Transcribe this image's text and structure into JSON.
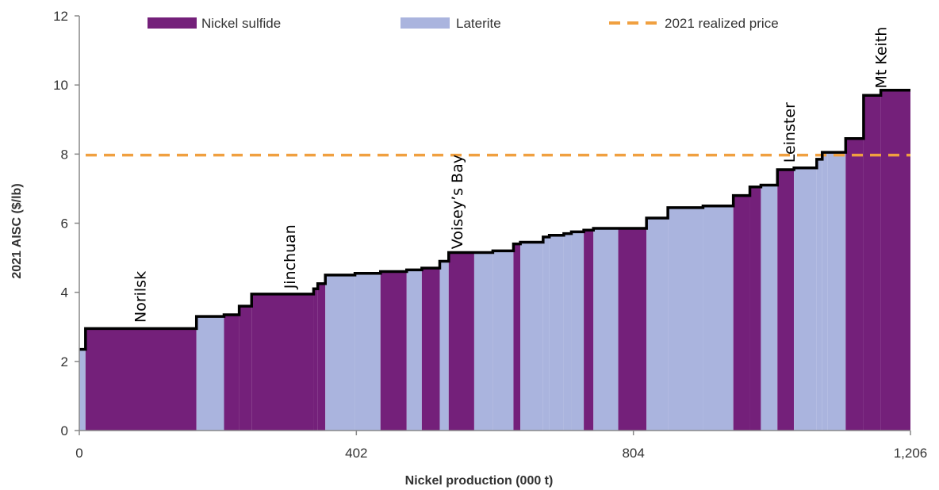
{
  "chart_data": {
    "type": "area",
    "xlabel": "Nickel production (000 t)",
    "ylabel": "2021 AISC ($/lb)",
    "xlim": [
      0,
      1206
    ],
    "ylim": [
      0,
      12
    ],
    "x_ticks": [
      {
        "value": 0,
        "label": "0"
      },
      {
        "value": 402,
        "label": "402"
      },
      {
        "value": 804,
        "label": "804"
      },
      {
        "value": 1206,
        "label": "1,206"
      }
    ],
    "y_ticks": [
      {
        "value": 0,
        "label": "0"
      },
      {
        "value": 2,
        "label": "2"
      },
      {
        "value": 4,
        "label": "4"
      },
      {
        "value": 6,
        "label": "6"
      },
      {
        "value": 8,
        "label": "8"
      },
      {
        "value": 10,
        "label": "10"
      },
      {
        "value": 12,
        "label": "12"
      }
    ],
    "colors": {
      "sulfide": "#74207a",
      "laterite": "#aab4de",
      "outline": "#000000",
      "price": "#f0a040",
      "axis": "#888888"
    },
    "legend": [
      {
        "key": "sulfide",
        "label": "Nickel sulfide"
      },
      {
        "key": "laterite",
        "label": "Laterite"
      },
      {
        "key": "price",
        "label": "2021 realized price"
      }
    ],
    "legend_position": "top",
    "reference_line": {
      "label": "2021 realized price",
      "value": 7.97
    },
    "mines": [
      {
        "start": 0,
        "end": 9,
        "cost": 2.35,
        "type": "laterite"
      },
      {
        "start": 9,
        "end": 170,
        "cost": 2.95,
        "type": "sulfide"
      },
      {
        "start": 170,
        "end": 210,
        "cost": 3.3,
        "type": "laterite"
      },
      {
        "start": 210,
        "end": 232,
        "cost": 3.35,
        "type": "sulfide"
      },
      {
        "start": 232,
        "end": 250,
        "cost": 3.6,
        "type": "sulfide"
      },
      {
        "start": 250,
        "end": 340,
        "cost": 3.95,
        "type": "sulfide"
      },
      {
        "start": 340,
        "end": 346,
        "cost": 4.1,
        "type": "sulfide"
      },
      {
        "start": 346,
        "end": 357,
        "cost": 4.25,
        "type": "sulfide"
      },
      {
        "start": 357,
        "end": 400,
        "cost": 4.5,
        "type": "laterite"
      },
      {
        "start": 400,
        "end": 437,
        "cost": 4.55,
        "type": "laterite"
      },
      {
        "start": 437,
        "end": 475,
        "cost": 4.6,
        "type": "sulfide"
      },
      {
        "start": 475,
        "end": 497,
        "cost": 4.65,
        "type": "laterite"
      },
      {
        "start": 497,
        "end": 523,
        "cost": 4.7,
        "type": "sulfide"
      },
      {
        "start": 523,
        "end": 536,
        "cost": 4.9,
        "type": "laterite"
      },
      {
        "start": 536,
        "end": 573,
        "cost": 5.15,
        "type": "sulfide"
      },
      {
        "start": 573,
        "end": 600,
        "cost": 5.15,
        "type": "laterite"
      },
      {
        "start": 600,
        "end": 630,
        "cost": 5.2,
        "type": "laterite"
      },
      {
        "start": 630,
        "end": 640,
        "cost": 5.4,
        "type": "sulfide"
      },
      {
        "start": 640,
        "end": 673,
        "cost": 5.45,
        "type": "laterite"
      },
      {
        "start": 673,
        "end": 682,
        "cost": 5.6,
        "type": "laterite"
      },
      {
        "start": 682,
        "end": 703,
        "cost": 5.65,
        "type": "laterite"
      },
      {
        "start": 703,
        "end": 714,
        "cost": 5.7,
        "type": "laterite"
      },
      {
        "start": 714,
        "end": 732,
        "cost": 5.75,
        "type": "laterite"
      },
      {
        "start": 732,
        "end": 746,
        "cost": 5.8,
        "type": "sulfide"
      },
      {
        "start": 746,
        "end": 782,
        "cost": 5.85,
        "type": "laterite"
      },
      {
        "start": 782,
        "end": 823,
        "cost": 5.85,
        "type": "sulfide"
      },
      {
        "start": 823,
        "end": 854,
        "cost": 6.15,
        "type": "laterite"
      },
      {
        "start": 854,
        "end": 905,
        "cost": 6.45,
        "type": "laterite"
      },
      {
        "start": 905,
        "end": 949,
        "cost": 6.5,
        "type": "laterite"
      },
      {
        "start": 949,
        "end": 973,
        "cost": 6.8,
        "type": "sulfide"
      },
      {
        "start": 973,
        "end": 989,
        "cost": 7.05,
        "type": "sulfide"
      },
      {
        "start": 989,
        "end": 1013,
        "cost": 7.1,
        "type": "laterite"
      },
      {
        "start": 1013,
        "end": 1037,
        "cost": 7.55,
        "type": "sulfide"
      },
      {
        "start": 1037,
        "end": 1070,
        "cost": 7.6,
        "type": "laterite"
      },
      {
        "start": 1070,
        "end": 1078,
        "cost": 7.85,
        "type": "laterite"
      },
      {
        "start": 1078,
        "end": 1086,
        "cost": 8.05,
        "type": "laterite"
      },
      {
        "start": 1086,
        "end": 1112,
        "cost": 8.05,
        "type": "laterite"
      },
      {
        "start": 1112,
        "end": 1138,
        "cost": 8.45,
        "type": "sulfide"
      },
      {
        "start": 1138,
        "end": 1163,
        "cost": 9.7,
        "type": "sulfide"
      },
      {
        "start": 1163,
        "end": 1206,
        "cost": 9.85,
        "type": "sulfide"
      }
    ],
    "annotations": [
      {
        "text": "Norilsk",
        "x": 88,
        "y": 3.12
      },
      {
        "text": "Jinchuan",
        "x": 305,
        "y": 4.1
      },
      {
        "text": "Voisey’s Bay",
        "x": 548,
        "y": 5.25
      },
      {
        "text": "Leinster",
        "x": 1030,
        "y": 7.75
      },
      {
        "text": "Mt Keith",
        "x": 1163,
        "y": 9.9
      }
    ]
  }
}
